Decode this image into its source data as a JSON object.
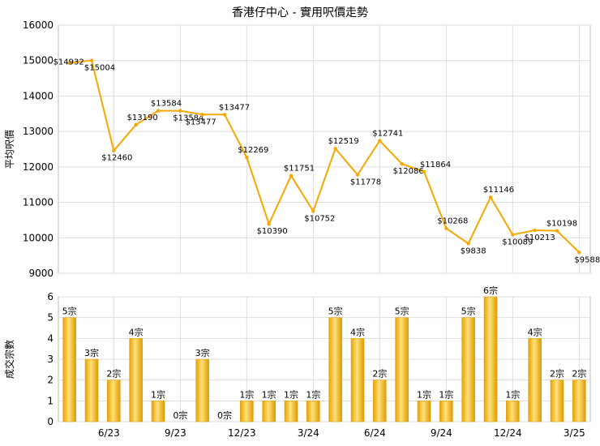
{
  "chart_data": [
    {
      "type": "line",
      "title": "香港仔中心 - 實用呎價走勢",
      "ylabel": "平均呎價",
      "ylim": [
        9000,
        16000
      ],
      "yticks": [
        9000,
        10000,
        11000,
        12000,
        13000,
        14000,
        15000,
        16000
      ],
      "grid": true,
      "color": "#f5a800",
      "series": [
        {
          "values": [
            14932,
            15004,
            12460,
            13190,
            13584,
            13584,
            13477,
            13477,
            12269,
            10390,
            11751,
            10752,
            12519,
            11778,
            12741,
            12086,
            11864,
            10268,
            9838,
            11146,
            10089,
            10213,
            10198,
            9588
          ],
          "labels": [
            "$14932",
            "$15004",
            "$12460",
            "$13190",
            "$13584",
            "$13584",
            "$13477",
            "$13477",
            "$12269",
            "$10390",
            "$11751",
            "$10752",
            "$12519",
            "$11778",
            "$12741",
            "$12086",
            "$11864",
            "$10268",
            "$9838",
            "$11146",
            "$10089",
            "$10213",
            "$10198",
            "$9588"
          ]
        }
      ]
    },
    {
      "type": "bar",
      "ylabel": "成交宗數",
      "ylim": [
        0,
        6
      ],
      "yticks": [
        0,
        1,
        2,
        3,
        4,
        5,
        6
      ],
      "grid": true,
      "color": "#f5a800",
      "unit": "宗",
      "values": [
        5,
        3,
        2,
        4,
        1,
        0,
        3,
        0,
        1,
        1,
        1,
        1,
        5,
        4,
        2,
        5,
        1,
        1,
        5,
        6,
        1,
        4,
        2,
        2
      ],
      "labels": [
        "5宗",
        "3宗",
        "2宗",
        "4宗",
        "1宗",
        "0宗",
        "3宗",
        "0宗",
        "1宗",
        "1宗",
        "1宗",
        "1宗",
        "5宗",
        "4宗",
        "2宗",
        "5宗",
        "1宗",
        "1宗",
        "5宗",
        "6宗",
        "1宗",
        "4宗",
        "2宗",
        "2宗"
      ],
      "categories": [
        "6/23",
        "9/23",
        "12/23",
        "3/24",
        "6/24",
        "9/24",
        "12/24",
        "3/25"
      ]
    }
  ]
}
